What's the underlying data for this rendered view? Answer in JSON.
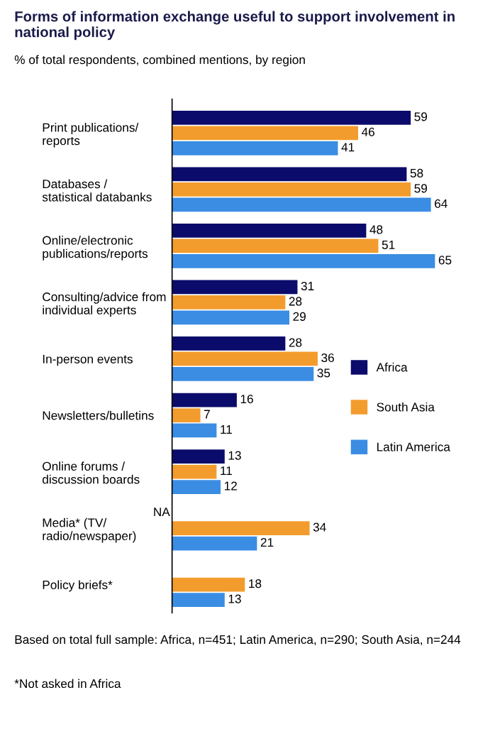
{
  "chart_data": {
    "type": "bar",
    "orientation": "horizontal",
    "title": "Forms of information exchange useful to support involvement in national policy",
    "subtitle": "% of total respondents, combined mentions, by region",
    "categories": [
      "Print publications/\nreports",
      "Databases /\nstatistical databanks",
      "Online/electronic\npublications/reports",
      "Consulting/advice from\nindividual experts",
      "In-person events",
      "Newsletters/bulletins",
      "Online forums /\ndiscussion boards",
      "Media* (TV/\nradio/newspaper)",
      "Policy briefs*"
    ],
    "series": [
      {
        "name": "Africa",
        "color": "#0b0b6b",
        "values": [
          59,
          58,
          48,
          31,
          28,
          16,
          13,
          null,
          null
        ],
        "value_labels": [
          "59",
          "58",
          "48",
          "31",
          "28",
          "16",
          "13",
          "NA",
          null
        ]
      },
      {
        "name": "South Asia",
        "color": "#f39c2e",
        "values": [
          46,
          59,
          51,
          28,
          36,
          7,
          11,
          34,
          18
        ]
      },
      {
        "name": "Latin America",
        "color": "#3b8de3",
        "values": [
          41,
          64,
          65,
          29,
          35,
          11,
          12,
          21,
          13
        ]
      }
    ],
    "data_labels": true,
    "legend": "right",
    "grid": false,
    "annotations": [
      "Based on total full sample: Africa, n=451; Latin America, n=290; South Asia, n=244",
      "*Not asked in Africa"
    ]
  }
}
